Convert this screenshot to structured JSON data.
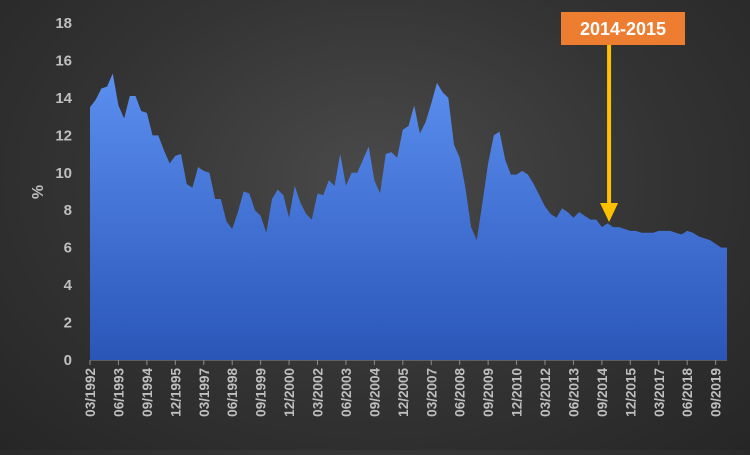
{
  "colors": {
    "area_top": "#5b8ff0",
    "area_bottom": "#2a56b8",
    "axis_text": "#bfbfbf",
    "arrow": "#ffc000",
    "callout_bg": "#ed7d31",
    "callout_text": "#ffffff"
  },
  "chart_data": {
    "type": "area",
    "ylabel": "%",
    "ylim": [
      0,
      18
    ],
    "yticks": [
      0,
      2,
      4,
      6,
      8,
      10,
      12,
      14,
      16,
      18
    ],
    "xtick_labels": [
      "03/1992",
      "06/1993",
      "09/1994",
      "12/1995",
      "03/1997",
      "06/1998",
      "09/1999",
      "12/2000",
      "03/2002",
      "06/2003",
      "09/2004",
      "12/2005",
      "03/2007",
      "06/2008",
      "09/2009",
      "12/2010",
      "03/2012",
      "06/2013",
      "09/2014",
      "12/2015",
      "03/2017",
      "06/2018",
      "09/2019"
    ],
    "grid": false,
    "series": [
      {
        "quarter_start": "03/1992",
        "values": [
          13.5,
          13.9,
          14.5,
          14.6,
          15.3,
          13.6,
          12.9,
          14.1,
          14.1,
          13.3,
          13.2,
          12.0,
          12.0,
          11.2,
          10.5,
          10.9,
          11.0,
          9.4,
          9.2,
          10.3,
          10.1,
          10.0,
          8.6,
          8.6,
          7.4,
          7.0,
          7.9,
          9.0,
          8.9,
          8.0,
          7.7,
          6.8,
          8.6,
          9.1,
          8.8,
          7.6,
          9.3,
          8.4,
          7.8,
          7.5,
          8.9,
          8.8,
          9.6,
          9.3,
          11.0,
          9.3,
          10.0,
          10.0,
          10.7,
          11.4,
          9.6,
          8.9,
          11.0,
          11.1,
          10.8,
          12.3,
          12.5,
          13.6,
          12.1,
          12.7,
          13.7,
          14.8,
          14.3,
          14.0,
          11.5,
          10.8,
          9.2,
          7.1,
          6.4,
          8.4,
          10.5,
          12.0,
          12.2,
          10.7,
          9.9,
          9.9,
          10.1,
          9.9,
          9.4,
          8.8,
          8.2,
          7.8,
          7.6,
          8.1,
          7.9,
          7.6,
          7.9,
          7.7,
          7.5,
          7.5,
          7.1,
          7.3,
          7.1,
          7.1,
          7.0,
          6.9,
          6.9,
          6.8,
          6.8,
          6.8,
          6.9,
          6.9,
          6.9,
          6.8,
          6.7,
          6.9,
          6.8,
          6.6,
          6.5,
          6.4,
          6.2,
          6.0,
          6.0
        ]
      }
    ],
    "annotation": {
      "label": "2014-2015",
      "points_to": "12/2014"
    }
  }
}
